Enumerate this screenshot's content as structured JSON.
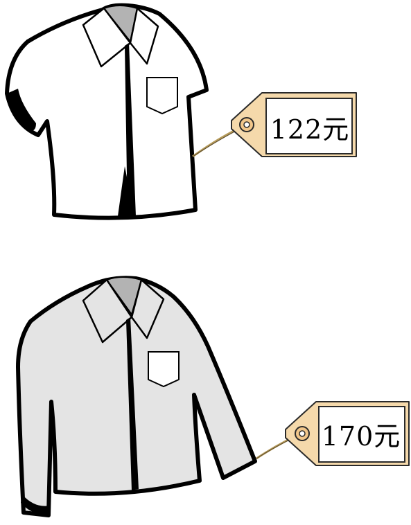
{
  "items": [
    {
      "name": "short-sleeve-shirt",
      "price": "122元",
      "shirt_color": "#ffffff"
    },
    {
      "name": "long-sleeve-shirt",
      "price": "170元",
      "shirt_color": "#e4e4e4"
    }
  ],
  "colors": {
    "tag_fill": "#f5d9ab",
    "tag_stroke": "#2a2a2a",
    "string": "#b59a5a",
    "collar_inner": "#b3b3b3",
    "outline": "#000000"
  }
}
